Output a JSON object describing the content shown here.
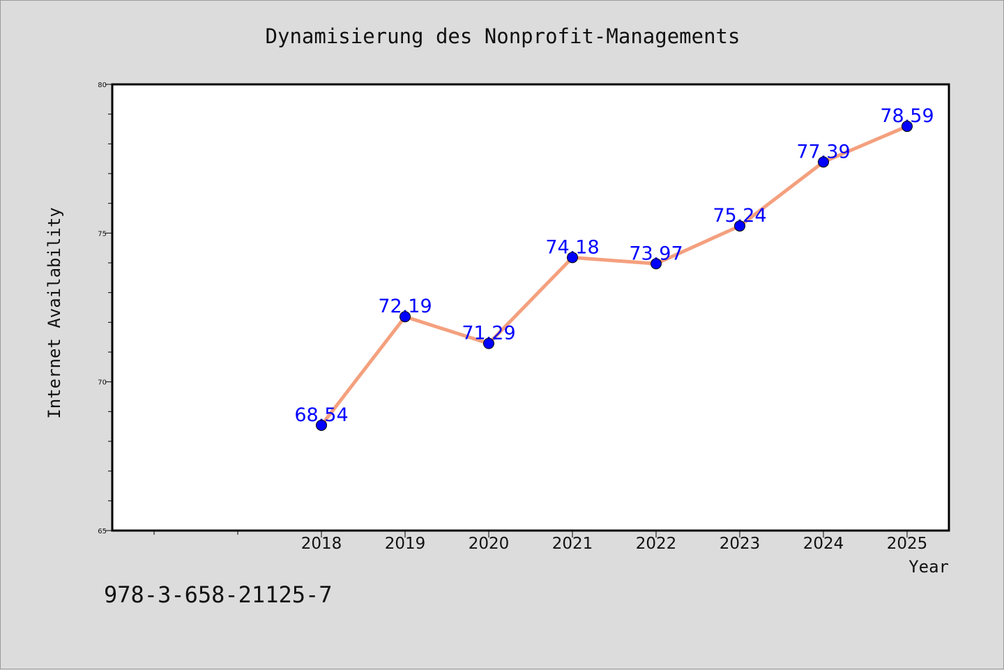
{
  "chart_data": {
    "type": "line",
    "title": "Dynamisierung des Nonprofit-Managements",
    "xlabel": "Year",
    "ylabel": "Internet Availability",
    "x": [
      "2018",
      "2019",
      "2020",
      "2021",
      "2022",
      "2023",
      "2024",
      "2025"
    ],
    "series": [
      {
        "values": [
          68.54,
          72.19,
          71.29,
          74.18,
          73.97,
          75.24,
          77.39,
          78.59
        ]
      }
    ],
    "data_labels": [
      "68.54",
      "72.19",
      "71.29",
      "74.18",
      "73.97",
      "75.24",
      "77.39",
      "78.59"
    ],
    "ylim": [
      65,
      80
    ],
    "yticks": [
      "65",
      "70",
      "75",
      "80"
    ],
    "grid": false,
    "legend": "none",
    "colors": {
      "line": "#f4a07e",
      "marker": "#0000ff",
      "label": "#0000ff",
      "background": "#dcdcdc",
      "plot_area": "#ffffff"
    }
  },
  "footer": {
    "isbn": "978-3-658-21125-7"
  }
}
